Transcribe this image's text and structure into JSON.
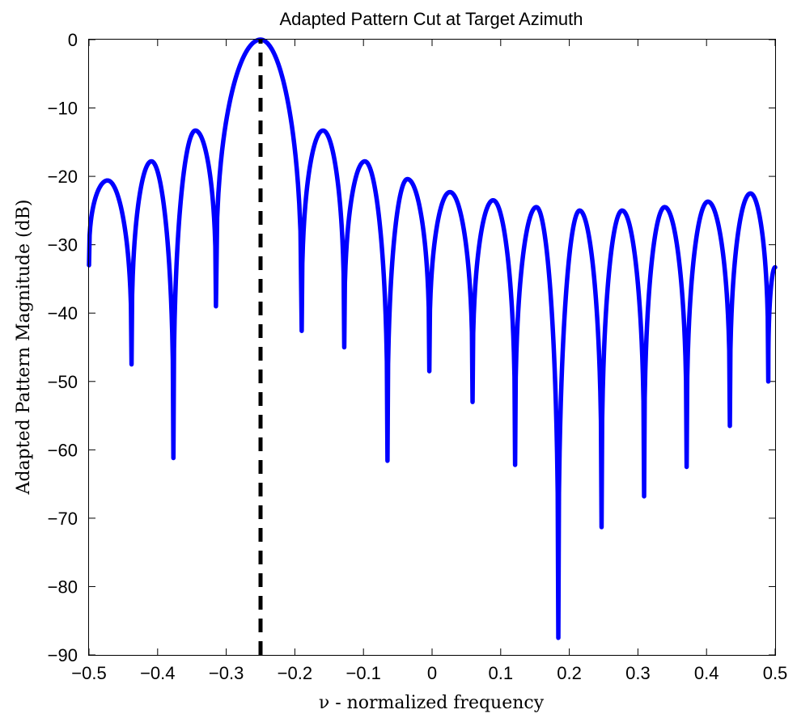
{
  "chart_data": {
    "type": "line",
    "title": "Adapted Pattern Cut at Target Azimuth",
    "xlabel": "ν - normalized frequency",
    "ylabel": "Adapted Pattern Magnitude (dB)",
    "xlim": [
      -0.5,
      0.5
    ],
    "ylim": [
      -90,
      0
    ],
    "xticks": [
      -0.5,
      -0.4,
      -0.3,
      -0.2,
      -0.1,
      0,
      0.1,
      0.2,
      0.3,
      0.4,
      0.5
    ],
    "xtick_labels": [
      "−0.5",
      "−0.4",
      "−0.3",
      "−0.2",
      "−0.1",
      "0",
      "0.1",
      "0.2",
      "0.3",
      "0.4",
      "0.5"
    ],
    "yticks": [
      0,
      -10,
      -20,
      -30,
      -40,
      -50,
      -60,
      -70,
      -80,
      -90
    ],
    "ytick_labels": [
      "0",
      "−10",
      "−20",
      "−30",
      "−40",
      "−50",
      "−60",
      "−70",
      "−80",
      "−90"
    ],
    "grid": false,
    "series": [
      {
        "color": "#0000ff",
        "style": "solid",
        "lobes": [
          {
            "null_start": -0.5,
            "peak_x": -0.473,
            "peak_y": -20.6,
            "null_end": -0.438,
            "start_level": -33.0,
            "end_level": -47.5
          },
          {
            "null_start": -0.438,
            "peak_x": -0.409,
            "peak_y": -17.8,
            "null_end": -0.377,
            "start_level": -47.5,
            "end_level": -61.2
          },
          {
            "null_start": -0.377,
            "peak_x": -0.345,
            "peak_y": -13.3,
            "null_end": -0.315,
            "start_level": -61.2,
            "end_level": -39.0
          },
          {
            "null_start": -0.315,
            "peak_x": -0.25,
            "peak_y": 0.0,
            "null_end": -0.19,
            "start_level": -39.0,
            "end_level": -42.6
          },
          {
            "null_start": -0.19,
            "peak_x": -0.159,
            "peak_y": -13.3,
            "null_end": -0.128,
            "start_level": -42.6,
            "end_level": -45.0
          },
          {
            "null_start": -0.128,
            "peak_x": -0.098,
            "peak_y": -17.8,
            "null_end": -0.065,
            "start_level": -45.0,
            "end_level": -61.6
          },
          {
            "null_start": -0.065,
            "peak_x": -0.036,
            "peak_y": -20.4,
            "null_end": -0.004,
            "start_level": -61.6,
            "end_level": -48.5
          },
          {
            "null_start": -0.004,
            "peak_x": 0.026,
            "peak_y": -22.3,
            "null_end": 0.059,
            "start_level": -48.5,
            "end_level": -53.0
          },
          {
            "null_start": 0.059,
            "peak_x": 0.089,
            "peak_y": -23.5,
            "null_end": 0.121,
            "start_level": -53.0,
            "end_level": -62.2
          },
          {
            "null_start": 0.121,
            "peak_x": 0.152,
            "peak_y": -24.5,
            "null_end": 0.184,
            "start_level": -62.2,
            "end_level": -87.5
          },
          {
            "null_start": 0.184,
            "peak_x": 0.215,
            "peak_y": -25.0,
            "null_end": 0.247,
            "start_level": -87.5,
            "end_level": -71.3
          },
          {
            "null_start": 0.247,
            "peak_x": 0.277,
            "peak_y": -25.0,
            "null_end": 0.309,
            "start_level": -71.3,
            "end_level": -66.8
          },
          {
            "null_start": 0.309,
            "peak_x": 0.339,
            "peak_y": -24.5,
            "null_end": 0.371,
            "start_level": -66.8,
            "end_level": -62.5
          },
          {
            "null_start": 0.371,
            "peak_x": 0.402,
            "peak_y": -23.7,
            "null_end": 0.434,
            "start_level": -62.5,
            "end_level": -56.5
          },
          {
            "null_start": 0.434,
            "peak_x": 0.464,
            "peak_y": -22.5,
            "null_end": 0.49,
            "start_level": -56.5,
            "end_level": -50.0
          },
          {
            "null_start": 0.49,
            "peak_x": 0.5,
            "peak_y": -33.3,
            "null_end": 0.5,
            "start_level": -50.0,
            "end_level": -33.3
          }
        ]
      },
      {
        "color": "#000000",
        "style": "dashed",
        "x": [
          -0.25,
          -0.25
        ],
        "y": [
          -90,
          0
        ]
      }
    ]
  }
}
